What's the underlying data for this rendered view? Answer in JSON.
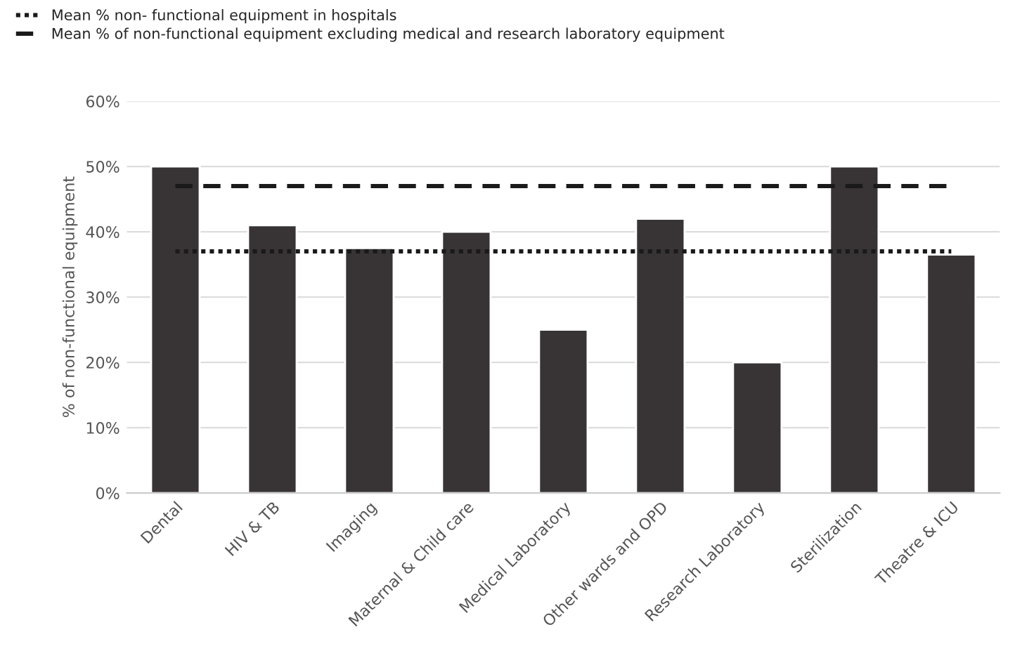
{
  "chart_data": {
    "type": "bar",
    "ylabel": "% of non-functional equipment",
    "categories": [
      "Dental",
      "HIV & TB",
      "Imaging",
      "Maternal & Child care",
      "Medical Laboratory",
      "Other wards and OPD",
      "Research Laboratory",
      "Sterilization",
      "Theatre & ICU"
    ],
    "series": [
      {
        "color": "#383435",
        "values": [
          50,
          41,
          37.5,
          40,
          25,
          42,
          20,
          50,
          36.5
        ]
      }
    ],
    "ylim": [
      0,
      60
    ],
    "yticks": [
      {
        "value": 0,
        "label": "0%"
      },
      {
        "value": 10,
        "label": "10%"
      },
      {
        "value": 20,
        "label": "20%"
      },
      {
        "value": 30,
        "label": "30%"
      },
      {
        "value": 40,
        "label": "40%"
      },
      {
        "value": 50,
        "label": "50%"
      },
      {
        "value": 60,
        "label": "60%"
      }
    ],
    "ref_lines": [
      {
        "axis": "y",
        "value": 37,
        "label": "Mean % non- functional equipment in hospitals",
        "color": "#1a1a1a",
        "line_style": "dotted"
      },
      {
        "axis": "y",
        "value": 47,
        "label": "Mean % of non-functional equipment excluding medical and research laboratory equipment",
        "color": "#1a1a1a",
        "line_style": "dashed"
      }
    ],
    "grid": "y",
    "legend": "top left"
  }
}
